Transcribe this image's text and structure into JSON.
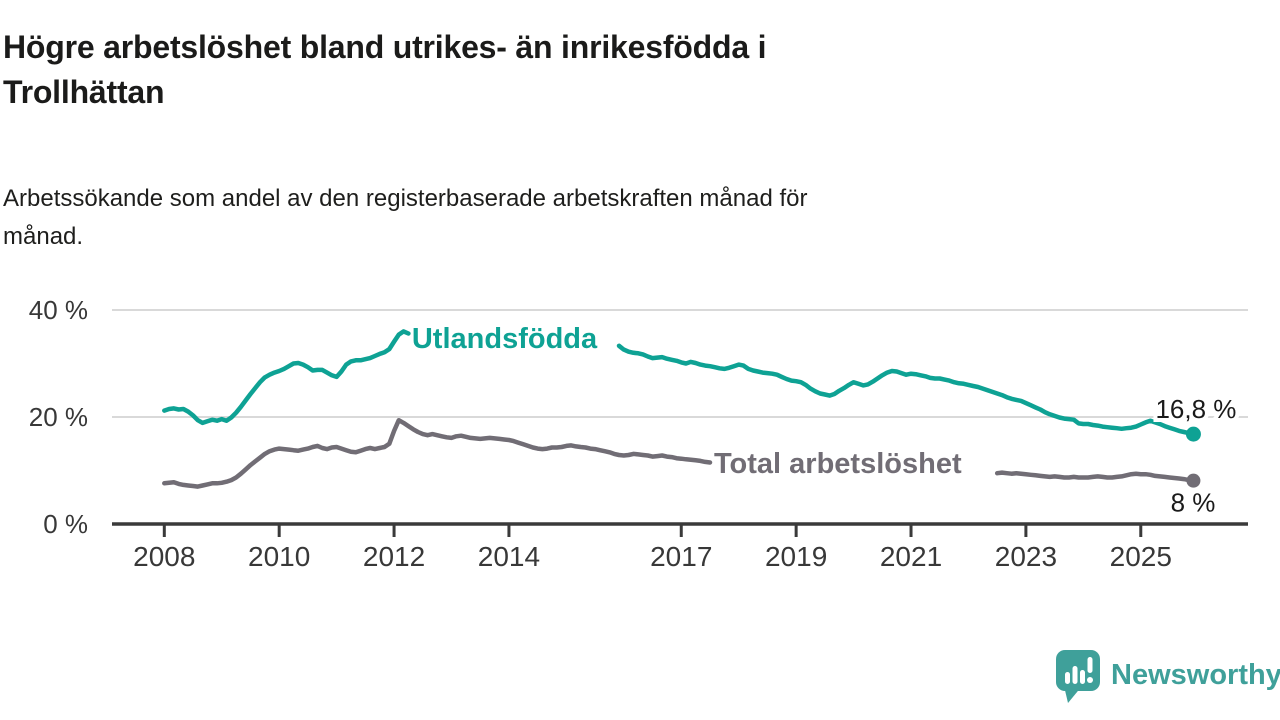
{
  "header": {
    "title_line1": "Högre arbetslöshet bland utrikes- än inrikesfödda i",
    "title_line2": "Trollhättan",
    "subtitle_line1": "Arbetssökande som andel av den registerbaserade arbetskraften månad för",
    "subtitle_line2": "månad."
  },
  "footer": {
    "logo_text": "Newsworthy",
    "logo_color": "#3FA09A"
  },
  "colors": {
    "background": "#ffffff",
    "title_text": "#1b1b1a",
    "subtitle_text": "#1e1e1c",
    "axis_line": "#3a3a3a",
    "gridline": "#d9d9d9",
    "tick_label": "#383838",
    "annotation_text": "#1a1a1a",
    "series_teal": "#0EA294",
    "series_gray": "#716D75",
    "logo_teal": "#3FA09A"
  },
  "chart_data": {
    "type": "line",
    "title": "Högre arbetslöshet bland utrikes- än inrikesfödda i Trollhättan",
    "subtitle": "Arbetssökande som andel av den registerbaserade arbetskraften månad för månad.",
    "unit": "%",
    "grid": true,
    "x_axis": {
      "range": [
        2007.1,
        2026.9
      ],
      "ticks": [
        {
          "year": 2008,
          "label": "2008"
        },
        {
          "year": 2010,
          "label": "2010"
        },
        {
          "year": 2012,
          "label": "2012"
        },
        {
          "year": 2014,
          "label": "2014"
        },
        {
          "year": 2017,
          "label": "2017"
        },
        {
          "year": 2019,
          "label": "2019"
        },
        {
          "year": 2021,
          "label": "2021"
        },
        {
          "year": 2023,
          "label": "2023"
        },
        {
          "year": 2025,
          "label": "2025"
        }
      ]
    },
    "y_axis": {
      "range": [
        0,
        42
      ],
      "ticks": [
        {
          "value": 0,
          "label": "0 %"
        },
        {
          "value": 20,
          "label": "20 %"
        },
        {
          "value": 40,
          "label": "40 %"
        }
      ]
    },
    "series": [
      {
        "id": "utlandsfodda",
        "name": "Utlandsfödda",
        "color": "#0EA294",
        "dot_radius": 7.5,
        "end_value": 16.8,
        "end_annotation": {
          "label": "16,8 %",
          "dx": 43,
          "dy": -16,
          "anchor": "end"
        },
        "label_pos": {
          "x": 2012.31,
          "y": 32.9
        },
        "segments": [
          {
            "start": 2008.0,
            "step_months": 1,
            "values": [
              21.2,
              21.5,
              21.6,
              21.4,
              21.5,
              21.0,
              20.3,
              19.4,
              18.9,
              19.2,
              19.5,
              19.3,
              19.6,
              19.3,
              19.9,
              20.8,
              21.9,
              23.1,
              24.3,
              25.4,
              26.5,
              27.4,
              27.9,
              28.3,
              28.6,
              29.0,
              29.5,
              30.0,
              30.1,
              29.8,
              29.3,
              28.7,
              28.8,
              28.8,
              28.3,
              27.8,
              27.5,
              28.5,
              29.8,
              30.4,
              30.6,
              30.6,
              30.8,
              31.0,
              31.4,
              31.8,
              32.1,
              32.7,
              34.1,
              35.4,
              36.0,
              35.6
            ]
          },
          {
            "start": 2015.9167,
            "step_months": 1,
            "values": [
              33.3,
              32.6,
              32.2,
              32.0,
              31.9,
              31.7,
              31.3,
              31.0,
              31.1,
              31.2,
              30.9,
              30.7,
              30.5,
              30.2,
              30.0,
              30.3,
              30.1,
              29.8,
              29.6,
              29.5,
              29.3,
              29.1,
              29.0,
              29.2,
              29.5,
              29.8,
              29.6,
              29.0,
              28.7,
              28.5,
              28.3,
              28.2,
              28.1,
              27.9,
              27.5,
              27.1,
              26.8,
              26.7,
              26.5,
              26.0,
              25.3,
              24.8,
              24.4,
              24.2,
              24.0,
              24.3,
              24.9,
              25.4,
              26.0,
              26.5,
              26.2,
              25.9,
              26.1,
              26.6,
              27.2,
              27.8,
              28.3,
              28.6,
              28.5,
              28.2,
              27.9,
              28.1,
              28.0,
              27.8,
              27.6,
              27.3,
              27.2,
              27.2,
              27.0,
              26.8,
              26.5,
              26.3,
              26.2,
              26.0,
              25.8,
              25.6,
              25.3,
              25.0,
              24.7,
              24.4,
              24.1,
              23.7,
              23.4,
              23.2,
              23.0,
              22.6,
              22.2,
              21.8,
              21.4,
              20.9,
              20.5,
              20.2,
              19.9,
              19.7,
              19.6,
              19.5,
              18.8,
              18.7,
              18.7,
              18.5,
              18.4,
              18.2,
              18.1,
              18.0,
              17.9,
              17.8,
              17.9,
              18.0,
              18.2,
              18.6,
              19.0,
              19.3,
              19.0,
              18.7,
              18.3,
              18.0,
              17.7,
              17.4,
              17.2,
              17.0,
              16.8
            ]
          }
        ]
      },
      {
        "id": "total",
        "name": "Total arbetslöshet",
        "color": "#716D75",
        "dot_radius": 7,
        "end_value": 8.1,
        "end_annotation": {
          "label": "8 %",
          "dx": 22,
          "dy": 31,
          "anchor": "end"
        },
        "label_pos": {
          "x": 2017.57,
          "y": 9.5
        },
        "segments": [
          {
            "start": 2008.0,
            "step_months": 1,
            "values": [
              7.6,
              7.7,
              7.8,
              7.5,
              7.3,
              7.2,
              7.1,
              7.0,
              7.2,
              7.4,
              7.6,
              7.6,
              7.7,
              7.9,
              8.2,
              8.7,
              9.4,
              10.2,
              11.0,
              11.7,
              12.4,
              13.1,
              13.6,
              13.9,
              14.1,
              14.0,
              13.9,
              13.8,
              13.7,
              13.9,
              14.1,
              14.4,
              14.6,
              14.2,
              14.0,
              14.3,
              14.4,
              14.1,
              13.8,
              13.5,
              13.4,
              13.7,
              14.0,
              14.2,
              14.0,
              14.2,
              14.4,
              15.0,
              17.4,
              19.4,
              18.9,
              18.3,
              17.7,
              17.2,
              16.8,
              16.6,
              16.8,
              16.6,
              16.4,
              16.2,
              16.1,
              16.4,
              16.5,
              16.3,
              16.1,
              16.0,
              15.9,
              16.0,
              16.1,
              16.0,
              15.9,
              15.8,
              15.7,
              15.5,
              15.2,
              14.9,
              14.6,
              14.3,
              14.1,
              14.0,
              14.1,
              14.3,
              14.3,
              14.4,
              14.6,
              14.7,
              14.5,
              14.4,
              14.3,
              14.1,
              14.0,
              13.8,
              13.6,
              13.4,
              13.1,
              12.9,
              12.8,
              12.9,
              13.1,
              13.0,
              12.9,
              12.8,
              12.6,
              12.7,
              12.8,
              12.6,
              12.5,
              12.3,
              12.2,
              12.1,
              12.0,
              11.9,
              11.8,
              11.6,
              11.5
            ]
          },
          {
            "start": 2022.5,
            "step_months": 1,
            "values": [
              9.5,
              9.6,
              9.5,
              9.4,
              9.5,
              9.4,
              9.3,
              9.2,
              9.1,
              9.0,
              8.9,
              8.8,
              8.9,
              8.8,
              8.7,
              8.7,
              8.8,
              8.7,
              8.7,
              8.7,
              8.8,
              8.9,
              8.8,
              8.7,
              8.7,
              8.8,
              8.9,
              9.1,
              9.3,
              9.4,
              9.3,
              9.3,
              9.2,
              9.0,
              8.9,
              8.8,
              8.7,
              8.6,
              8.5,
              8.4,
              8.2,
              8.1
            ]
          }
        ]
      }
    ]
  }
}
